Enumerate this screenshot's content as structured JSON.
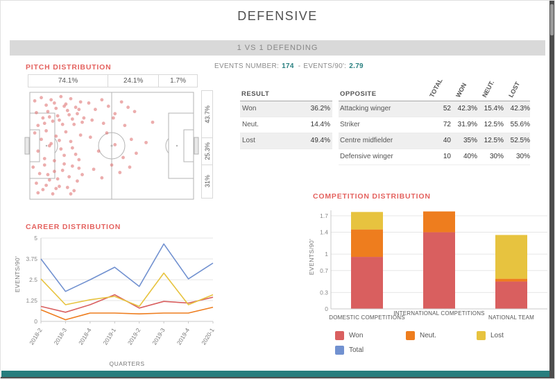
{
  "window": {
    "title": "DEFENSIVE",
    "subtitle": "1 VS 1 DEFENDING"
  },
  "stats": {
    "events_number_label": "EVENTS NUMBER:",
    "events_number": "174",
    "separator": "-",
    "events_per90_label": "EVENTS/90':",
    "events_per90": "2.79"
  },
  "colors": {
    "accent": "#e4625f",
    "dot": "#dd6a6a",
    "teal": "#2a8080",
    "won": "#d95f5f",
    "neut": "#ee7d1e",
    "lost": "#e7c33f",
    "total": "#7191d0"
  },
  "tables": {
    "result": {
      "header": "RESULT",
      "rows": [
        {
          "label": "Won",
          "value": "36.2%"
        },
        {
          "label": "Neut.",
          "value": "14.4%"
        },
        {
          "label": "Lost",
          "value": "49.4%"
        }
      ]
    },
    "opposite": {
      "header": "OPPOSITE",
      "columns": [
        "TOTAL",
        "WON",
        "NEUT.",
        "LOST"
      ],
      "rows": [
        {
          "name": "Attacking winger",
          "values": [
            "52",
            "42.3%",
            "15.4%",
            "42.3%"
          ]
        },
        {
          "name": "Striker",
          "values": [
            "72",
            "31.9%",
            "12.5%",
            "55.6%"
          ]
        },
        {
          "name": "Centre midfielder",
          "values": [
            "40",
            "35%",
            "12.5%",
            "52.5%"
          ]
        },
        {
          "name": "Defensive winger",
          "values": [
            "10",
            "40%",
            "30%",
            "30%"
          ]
        }
      ]
    }
  },
  "legend": [
    {
      "label": "Won",
      "color": "#d95f5f"
    },
    {
      "label": "Neut.",
      "color": "#ee7d1e"
    },
    {
      "label": "Lost",
      "color": "#e7c33f"
    },
    {
      "label": "Total",
      "color": "#7191d0"
    }
  ],
  "chart_data": [
    {
      "type": "scatter",
      "title": "PITCH DISTRIBUTION",
      "zones_horizontal": [
        "74.1%",
        "24.1%",
        "1.7%"
      ],
      "zones_vertical": [
        "43.7%",
        "25.3%",
        "31%"
      ],
      "points": [
        [
          3,
          8
        ],
        [
          7,
          5
        ],
        [
          10,
          12
        ],
        [
          13,
          7
        ],
        [
          16,
          15
        ],
        [
          19,
          4
        ],
        [
          22,
          11
        ],
        [
          25,
          6
        ],
        [
          28,
          14
        ],
        [
          31,
          9
        ],
        [
          4,
          19
        ],
        [
          8,
          24
        ],
        [
          11,
          18
        ],
        [
          14,
          27
        ],
        [
          17,
          22
        ],
        [
          20,
          30
        ],
        [
          23,
          17
        ],
        [
          26,
          25
        ],
        [
          29,
          20
        ],
        [
          32,
          28
        ],
        [
          5,
          31
        ],
        [
          9,
          29
        ],
        [
          12,
          23
        ],
        [
          15,
          10
        ],
        [
          18,
          26
        ],
        [
          21,
          13
        ],
        [
          24,
          21
        ],
        [
          27,
          30
        ],
        [
          30,
          16
        ],
        [
          33,
          24
        ],
        [
          36,
          10
        ],
        [
          40,
          16
        ],
        [
          44,
          7
        ],
        [
          48,
          13
        ],
        [
          52,
          20
        ],
        [
          56,
          9
        ],
        [
          60,
          14
        ],
        [
          64,
          18
        ],
        [
          38,
          26
        ],
        [
          45,
          29
        ],
        [
          51,
          24
        ],
        [
          58,
          31
        ],
        [
          3,
          38
        ],
        [
          7,
          44
        ],
        [
          10,
          36
        ],
        [
          13,
          48
        ],
        [
          16,
          41
        ],
        [
          19,
          53
        ],
        [
          22,
          37
        ],
        [
          25,
          46
        ],
        [
          28,
          58
        ],
        [
          31,
          40
        ],
        [
          5,
          55
        ],
        [
          9,
          62
        ],
        [
          12,
          50
        ],
        [
          15,
          64
        ],
        [
          18,
          45
        ],
        [
          21,
          59
        ],
        [
          26,
          52
        ],
        [
          30,
          63
        ],
        [
          37,
          42
        ],
        [
          42,
          55
        ],
        [
          47,
          38
        ],
        [
          52,
          49
        ],
        [
          57,
          61
        ],
        [
          62,
          44
        ],
        [
          65,
          57
        ],
        [
          2,
          70
        ],
        [
          6,
          76
        ],
        [
          9,
          68
        ],
        [
          12,
          82
        ],
        [
          15,
          74
        ],
        [
          18,
          88
        ],
        [
          21,
          67
        ],
        [
          24,
          79
        ],
        [
          27,
          92
        ],
        [
          30,
          71
        ],
        [
          4,
          85
        ],
        [
          8,
          91
        ],
        [
          11,
          77
        ],
        [
          14,
          95
        ],
        [
          17,
          81
        ],
        [
          20,
          73
        ],
        [
          23,
          89
        ],
        [
          26,
          69
        ],
        [
          29,
          83
        ],
        [
          32,
          77
        ],
        [
          5,
          94
        ],
        [
          10,
          87
        ],
        [
          16,
          90
        ],
        [
          25,
          95
        ],
        [
          39,
          72
        ],
        [
          44,
          80
        ],
        [
          50,
          68
        ],
        [
          55,
          75
        ],
        [
          61,
          70
        ],
        [
          71,
          47
        ],
        [
          75,
          28
        ]
      ]
    },
    {
      "type": "line",
      "title": "CAREER DISTRIBUTION",
      "xlabel": "QUARTERS",
      "ylabel": "EVENTS/90'",
      "categories": [
        "2018-2",
        "2018-3",
        "2018-4",
        "2019-1",
        "2019-2",
        "2019-3",
        "2019-4",
        "2020-1"
      ],
      "ylim": [
        0,
        5
      ],
      "yticks": [
        0,
        1.25,
        2.5,
        3.75,
        5
      ],
      "series": [
        {
          "name": "Won",
          "color": "#d95f5f",
          "values": [
            0.9,
            0.55,
            1.0,
            1.6,
            0.8,
            1.2,
            1.1,
            1.45
          ]
        },
        {
          "name": "Neut.",
          "color": "#ee7d1e",
          "values": [
            0.7,
            0.1,
            0.5,
            0.5,
            0.45,
            0.5,
            0.5,
            0.85
          ]
        },
        {
          "name": "Lost",
          "color": "#e7c33f",
          "values": [
            2.55,
            1.0,
            1.3,
            1.5,
            0.9,
            2.9,
            1.0,
            1.6
          ]
        },
        {
          "name": "Total",
          "color": "#7191d0",
          "values": [
            3.75,
            1.8,
            2.5,
            3.25,
            2.1,
            4.65,
            2.55,
            3.5
          ]
        }
      ]
    },
    {
      "type": "bar",
      "stacked": true,
      "title": "COMPETITION DISTRIBUTION",
      "ylabel": "EVENTS/90'",
      "categories": [
        "DOMESTIC COMPETITIONS",
        "INTERNATIONAL COMPETITIONS",
        "NATIONAL TEAM"
      ],
      "ylim": [
        0,
        1.8
      ],
      "yticks": [
        0,
        0.3,
        0.7,
        1,
        1.4,
        1.7
      ],
      "series": [
        {
          "name": "Won",
          "color": "#d95f5f",
          "values": [
            0.95,
            1.4,
            0.5
          ]
        },
        {
          "name": "Neut.",
          "color": "#ee7d1e",
          "values": [
            0.5,
            0.38,
            0.05
          ]
        },
        {
          "name": "Lost",
          "color": "#e7c33f",
          "values": [
            0.32,
            0,
            0.8
          ]
        }
      ]
    }
  ]
}
